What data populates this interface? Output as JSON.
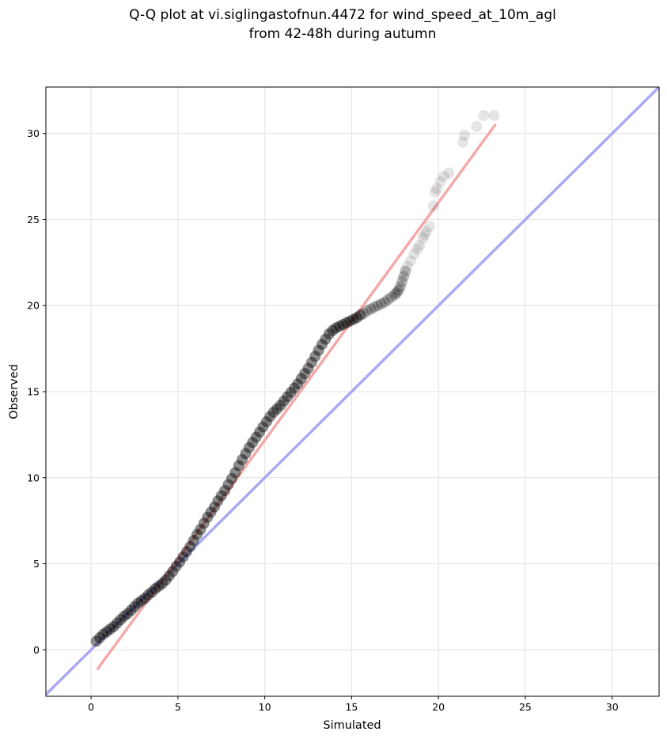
{
  "chart_data": {
    "type": "scatter",
    "title_lines": [
      "Q-Q plot at vi.siglingastofnun.4472 for wind_speed_at_10m_agl",
      "from 42-48h during autumn"
    ],
    "xlabel": "Simulated",
    "ylabel": "Observed",
    "xlim": [
      -2.6,
      32.7
    ],
    "ylim": [
      -2.7,
      32.7
    ],
    "xticks": [
      0,
      5,
      10,
      15,
      20,
      25,
      30
    ],
    "yticks": [
      0,
      5,
      10,
      15,
      20,
      25,
      30
    ],
    "grid": true,
    "reference_lines": [
      {
        "kind": "identity",
        "color": "#aaaaf2",
        "x": [
          -2.6,
          32.7
        ],
        "y": [
          -2.6,
          32.7
        ]
      },
      {
        "kind": "fit",
        "color": "#f2aaaa",
        "x": [
          0.35,
          23.3
        ],
        "y": [
          -1.15,
          30.55
        ]
      }
    ],
    "series": [
      {
        "marker_color": "#000000",
        "x": [
          0.3,
          0.5,
          0.7,
          0.9,
          1.1,
          1.3,
          1.5,
          1.7,
          1.9,
          2.1,
          2.3,
          2.5,
          2.7,
          2.9,
          3.1,
          3.3,
          3.5,
          3.7,
          3.9,
          4.1,
          4.3,
          4.5,
          4.7,
          4.9,
          5.1,
          5.3,
          5.5,
          5.7,
          5.9,
          6.1,
          6.3,
          6.5,
          6.7,
          6.9,
          7.1,
          7.3,
          7.5,
          7.7,
          7.9,
          8.1,
          8.3,
          8.5,
          8.7,
          8.9,
          9.1,
          9.3,
          9.5,
          9.7,
          9.9,
          10.1,
          10.3,
          10.5,
          10.7,
          10.9,
          11.1,
          11.3,
          11.5,
          11.7,
          11.9,
          12.1,
          12.3,
          12.5,
          12.7,
          12.9,
          13.1,
          13.3,
          13.5,
          13.7,
          13.9,
          14.1,
          14.3,
          14.5,
          14.7,
          14.9,
          15.1,
          15.3,
          15.5,
          15.7,
          15.9,
          16.1,
          16.3,
          16.5,
          16.7,
          16.9,
          17.1,
          17.3,
          17.5,
          17.6,
          17.7,
          17.8,
          17.9,
          18.0,
          18.1,
          18.2,
          18.4,
          18.6,
          18.8,
          18.9,
          19.1,
          19.2,
          19.3,
          19.5,
          19.7,
          19.8,
          19.9,
          20.1,
          20.3,
          20.6,
          21.4,
          21.5,
          22.2,
          22.6,
          23.2
        ],
        "y": [
          0.5,
          0.7,
          0.9,
          1.05,
          1.2,
          1.35,
          1.55,
          1.75,
          1.95,
          2.1,
          2.3,
          2.5,
          2.7,
          2.85,
          3.0,
          3.2,
          3.35,
          3.55,
          3.7,
          3.85,
          4.05,
          4.3,
          4.55,
          4.85,
          5.1,
          5.4,
          5.7,
          6.0,
          6.35,
          6.7,
          7.0,
          7.35,
          7.7,
          8.0,
          8.3,
          8.65,
          8.95,
          9.25,
          9.6,
          9.95,
          10.3,
          10.7,
          11.05,
          11.4,
          11.75,
          12.05,
          12.35,
          12.65,
          12.95,
          13.25,
          13.55,
          13.8,
          14.0,
          14.2,
          14.45,
          14.7,
          14.95,
          15.2,
          15.45,
          15.75,
          16.05,
          16.35,
          16.7,
          17.05,
          17.4,
          17.75,
          18.05,
          18.35,
          18.55,
          18.7,
          18.8,
          18.9,
          19.0,
          19.1,
          19.2,
          19.3,
          19.45,
          19.55,
          19.7,
          19.8,
          19.9,
          20.0,
          20.1,
          20.2,
          20.35,
          20.5,
          20.65,
          20.75,
          20.9,
          21.1,
          21.4,
          21.7,
          22.0,
          22.3,
          22.6,
          23.0,
          23.3,
          23.5,
          23.9,
          24.1,
          24.3,
          24.6,
          25.8,
          26.6,
          26.8,
          27.2,
          27.5,
          27.7,
          29.5,
          29.9,
          30.4,
          31.05,
          31.05
        ]
      }
    ]
  }
}
